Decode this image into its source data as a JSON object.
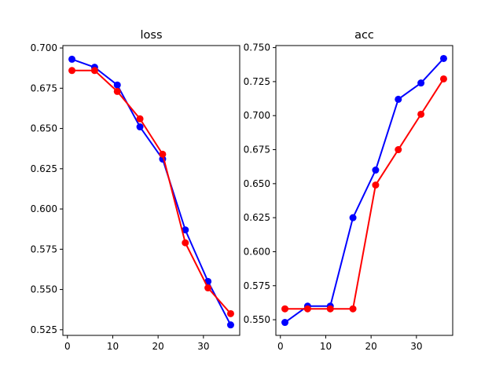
{
  "chart_data": [
    {
      "type": "line",
      "title": "loss",
      "xlabel": "",
      "ylabel": "",
      "xlim": [
        -1,
        38
      ],
      "ylim": [
        0.5215,
        0.7015
      ],
      "x_ticks": [
        0,
        10,
        20,
        30
      ],
      "x_tick_labels": [
        "0",
        "10",
        "20",
        "30"
      ],
      "y_ticks": [
        0.525,
        0.55,
        0.575,
        0.6,
        0.625,
        0.65,
        0.675,
        0.7
      ],
      "y_tick_labels": [
        "0.525",
        "0.550",
        "0.575",
        "0.600",
        "0.625",
        "0.650",
        "0.675",
        "0.700"
      ],
      "grid": false,
      "x": [
        1,
        6,
        11,
        16,
        21,
        26,
        31,
        36
      ],
      "series": [
        {
          "color": "#0000ff",
          "values": [
            0.693,
            0.688,
            0.677,
            0.651,
            0.631,
            0.587,
            0.555,
            0.528
          ]
        },
        {
          "color": "#ff0000",
          "values": [
            0.686,
            0.686,
            0.673,
            0.656,
            0.634,
            0.579,
            0.551,
            0.535
          ]
        }
      ]
    },
    {
      "type": "line",
      "title": "acc",
      "xlabel": "",
      "ylabel": "",
      "xlim": [
        -1,
        38
      ],
      "ylim": [
        0.5385,
        0.7515
      ],
      "x_ticks": [
        0,
        10,
        20,
        30
      ],
      "x_tick_labels": [
        "0",
        "10",
        "20",
        "30"
      ],
      "y_ticks": [
        0.55,
        0.575,
        0.6,
        0.625,
        0.65,
        0.675,
        0.7,
        0.725,
        0.75
      ],
      "y_tick_labels": [
        "0.550",
        "0.575",
        "0.600",
        "0.625",
        "0.650",
        "0.675",
        "0.700",
        "0.725",
        "0.750"
      ],
      "grid": false,
      "x": [
        1,
        6,
        11,
        16,
        21,
        26,
        31,
        36
      ],
      "series": [
        {
          "color": "#0000ff",
          "values": [
            0.548,
            0.56,
            0.56,
            0.625,
            0.66,
            0.712,
            0.724,
            0.742
          ]
        },
        {
          "color": "#ff0000",
          "values": [
            0.558,
            0.558,
            0.558,
            0.558,
            0.649,
            0.675,
            0.701,
            0.727
          ]
        }
      ]
    }
  ]
}
